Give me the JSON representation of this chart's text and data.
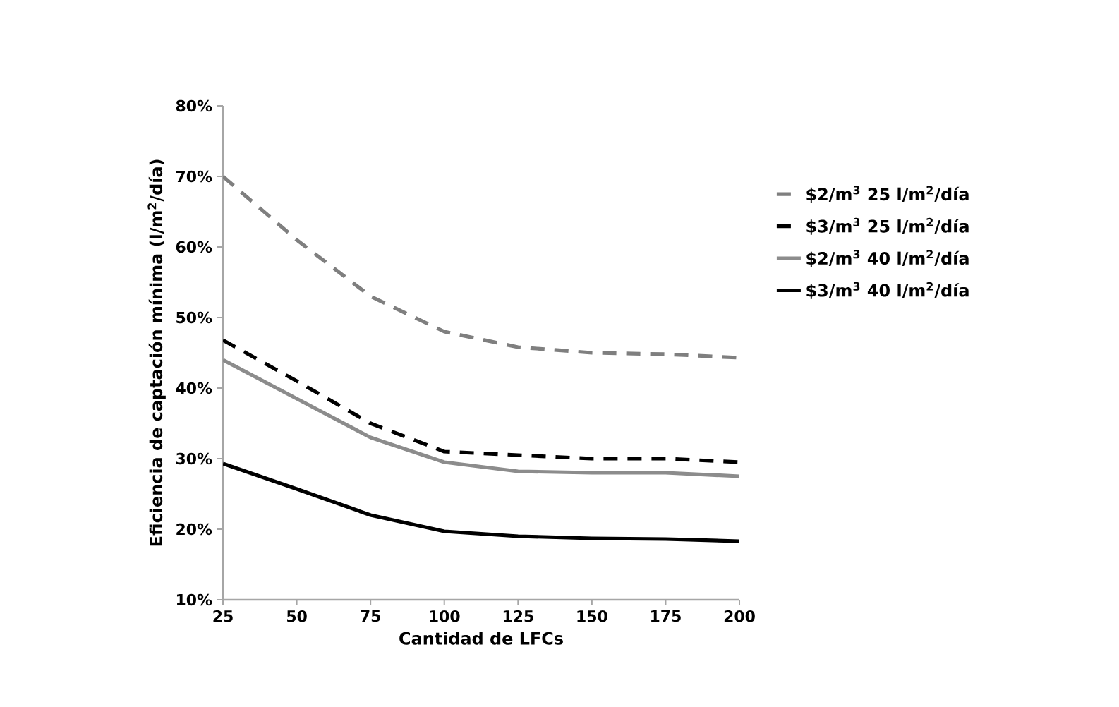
{
  "chart_data": {
    "type": "line",
    "xlabel": "Cantidad de LFCs",
    "ylabel": "Eficiencia de captación mínima (l/m$^{2}$/día)",
    "x": [
      25,
      50,
      75,
      100,
      125,
      150,
      175,
      200
    ],
    "series": [
      {
        "name": "$2/m$^{3}$ 25 l/m$^{2}$/día",
        "color": "#7f7f7f",
        "line_style": "dashed",
        "values": [
          70,
          61,
          53,
          48,
          45.8,
          45,
          44.8,
          44.3
        ]
      },
      {
        "name": "$3/m$^{3}$ 25 l/m$^{2}$/día",
        "color": "#000000",
        "line_style": "dashed",
        "values": [
          46.8,
          41,
          35,
          31,
          30.5,
          30,
          30,
          29.5
        ]
      },
      {
        "name": "$2/m$^{3}$ 40 l/m$^{2}$/día",
        "color": "#8c8c8c",
        "line_style": "solid",
        "values": [
          44,
          38.5,
          33,
          29.5,
          28.2,
          28,
          28,
          27.5
        ]
      },
      {
        "name": "$3/m$^{3}$ 40 l/m$^{2}$/día",
        "color": "#000000",
        "line_style": "solid",
        "values": [
          29.3,
          25.7,
          22,
          19.7,
          19,
          18.7,
          18.6,
          18.3
        ]
      }
    ],
    "xlim": [
      25,
      200
    ],
    "xticks": [
      25,
      50,
      75,
      100,
      125,
      150,
      175,
      200
    ],
    "ylim": [
      10,
      80
    ],
    "yticks": [
      {
        "value": 10,
        "label": "10%"
      },
      {
        "value": 20,
        "label": "20%"
      },
      {
        "value": 30,
        "label": "30%"
      },
      {
        "value": 40,
        "label": "40%"
      },
      {
        "value": 50,
        "label": "50%"
      },
      {
        "value": 60,
        "label": "60%"
      },
      {
        "value": 70,
        "label": "70%"
      },
      {
        "value": 80,
        "label": "80%"
      }
    ],
    "grid": false,
    "legend": "right",
    "marker": "none"
  }
}
